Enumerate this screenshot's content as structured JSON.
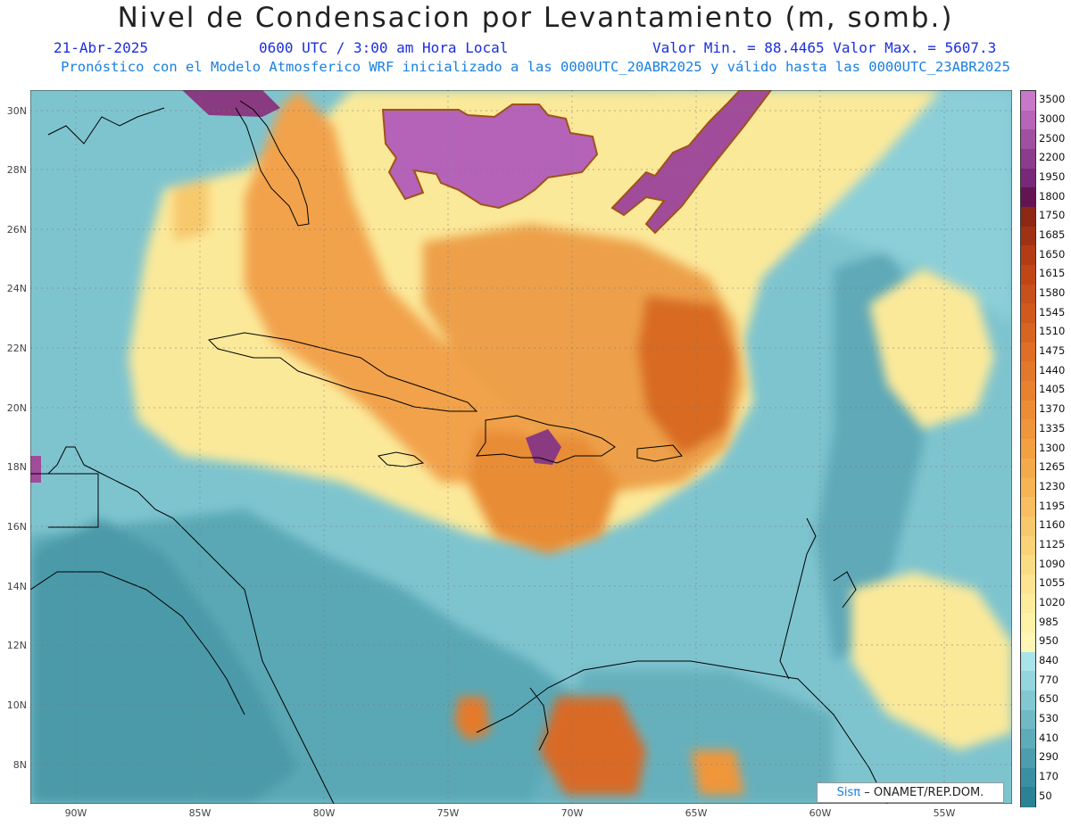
{
  "header": {
    "title": "Nivel de Condensacion por Levantamiento (m, somb.)",
    "date": "21-Abr-2025",
    "time": "0600 UTC / 3:00 am Hora Local",
    "minmax": "Valor Min. = 88.4465  Valor Max. = 5607.3",
    "subtitle": "Pronóstico con el Modelo Atmosferico WRF inicializado a las 0000UTC_20ABR2025 y válido hasta las  0000UTC_23ABR2025"
  },
  "map": {
    "lat_ticks": [
      "30N",
      "28N",
      "26N",
      "24N",
      "22N",
      "20N",
      "18N",
      "16N",
      "14N",
      "12N",
      "10N",
      "8N"
    ],
    "lon_ticks": [
      "90W",
      "85W",
      "80W",
      "75W",
      "70W",
      "65W",
      "60W",
      "55W"
    ]
  },
  "colorbar": {
    "labels": [
      "3500",
      "3000",
      "2500",
      "2200",
      "1950",
      "1800",
      "1750",
      "1685",
      "1650",
      "1615",
      "1580",
      "1545",
      "1510",
      "1475",
      "1440",
      "1405",
      "1370",
      "1335",
      "1300",
      "1265",
      "1230",
      "1195",
      "1160",
      "1125",
      "1090",
      "1055",
      "1020",
      "985",
      "950",
      "840",
      "770",
      "650",
      "530",
      "410",
      "290",
      "170",
      "50"
    ],
    "colors": [
      "#c878c8",
      "#b864b8",
      "#a050a0",
      "#8c3c8c",
      "#782878",
      "#641450",
      "#8c2814",
      "#a03214",
      "#b43c14",
      "#c04616",
      "#c8501a",
      "#d05a1e",
      "#d86422",
      "#e06e26",
      "#e4782a",
      "#e8822e",
      "#ec8c34",
      "#f0963a",
      "#f2a040",
      "#f4aa4a",
      "#f6b454",
      "#f8be60",
      "#f8c86c",
      "#fad278",
      "#fadc84",
      "#fce490",
      "#fcec9c",
      "#fef2a8",
      "#fef6b4",
      "#a8e4ea",
      "#94d6de",
      "#82c8d2",
      "#70bac6",
      "#5eacba",
      "#4c9eae",
      "#3a90a2",
      "#2a8294"
    ]
  },
  "credit": {
    "sis": "Sisπ",
    "org": "– ONAMET/REP.DOM."
  }
}
